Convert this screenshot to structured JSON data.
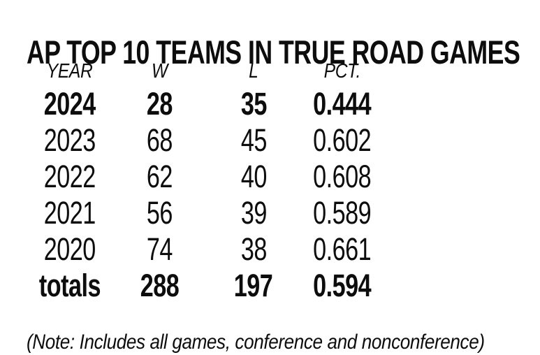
{
  "colors": {
    "text": "#0d0d0d",
    "background": "#ffffff"
  },
  "chart_data": {
    "type": "table",
    "title": "AP TOP 10 TEAMS IN TRUE ROAD GAMES",
    "columns": [
      "YEAR",
      "W",
      "L",
      "PCT."
    ],
    "rows": [
      {
        "year": "2024",
        "w": "28",
        "l": "35",
        "pct": "0.444"
      },
      {
        "year": "2023",
        "w": "68",
        "l": "45",
        "pct": "0.602"
      },
      {
        "year": "2022",
        "w": "62",
        "l": "40",
        "pct": "0.608"
      },
      {
        "year": "2021",
        "w": "56",
        "l": "39",
        "pct": "0.589"
      },
      {
        "year": "2020",
        "w": "74",
        "l": "38",
        "pct": "0.661"
      },
      {
        "year": "totals",
        "w": "288",
        "l": "197",
        "pct": "0.594"
      }
    ],
    "emphasized_rows": [
      "2024",
      "totals"
    ],
    "note": "(Note: Includes all games, conference and nonconference)",
    "layout": {
      "grid": "off",
      "alignment": "center"
    }
  }
}
